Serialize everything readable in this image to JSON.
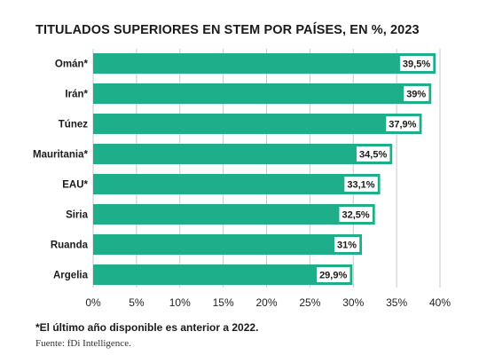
{
  "chart_data": {
    "type": "bar",
    "orientation": "horizontal",
    "title": "TITULADOS SUPERIORES EN STEM POR PAÍSES, EN %, 2023",
    "categories": [
      "Omán*",
      "Irán*",
      "Túnez",
      "Mauritania*",
      "EAU*",
      "Siria",
      "Ruanda",
      "Argelia"
    ],
    "values": [
      39.5,
      39,
      37.9,
      34.5,
      33.1,
      32.5,
      31,
      29.9
    ],
    "value_labels": [
      "39,5%",
      "39%",
      "37,9%",
      "34,5%",
      "33,1%",
      "32,5%",
      "31%",
      "29,9%"
    ],
    "xlim": [
      0,
      40
    ],
    "xticks": [
      "0%",
      "5%",
      "10%",
      "15%",
      "20%",
      "25%",
      "30%",
      "35%",
      "40%"
    ],
    "grid": true,
    "bar_color": "#1fae8a",
    "value_label_bg": "#ffffff",
    "footnote": "*El último año disponible es anterior a 2022.",
    "source": "Fuente: fDi Intelligence."
  }
}
